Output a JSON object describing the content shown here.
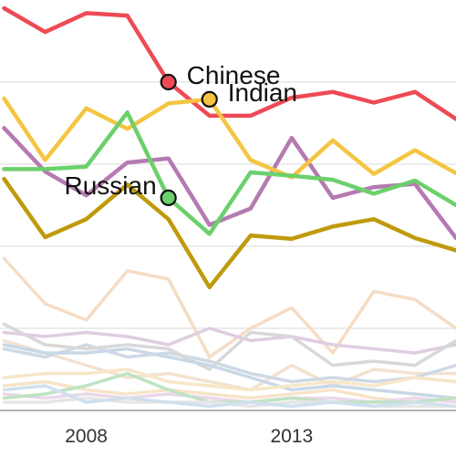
{
  "chart_data": {
    "type": "line",
    "title": "",
    "xlabel": "",
    "ylabel": "",
    "xlim": [
      2005.9,
      2017.0
    ],
    "ylim": [
      0,
      100
    ],
    "x_ticks": [
      2008,
      2013
    ],
    "x_tick_labels": [
      "2008",
      "2013"
    ],
    "grid": "horizontal",
    "legend": "none",
    "x": [
      2006,
      2007,
      2008,
      2009,
      2010,
      2011,
      2012,
      2013,
      2014,
      2015,
      2016,
      2017
    ],
    "highlighted": [
      {
        "name": "Chinese",
        "color": "#ee4a55",
        "label_year": 2010,
        "values": [
          98,
          92.2,
          96.8,
          96.2,
          80,
          71.8,
          71.8,
          76.2,
          77.6,
          75,
          77.6,
          71
        ]
      },
      {
        "name": "Indian",
        "color": "#f5c542",
        "label_year": 2011,
        "values": [
          76,
          61,
          73.6,
          68.6,
          74.8,
          75.8,
          61,
          56.8,
          65.8,
          57.6,
          63.4,
          57.8
        ]
      },
      {
        "name": "Russian",
        "color": "#6cd06c",
        "label_year": 2010,
        "values": [
          58.8,
          58.8,
          59.4,
          72.6,
          51.8,
          43,
          58,
          57.2,
          56.2,
          52.8,
          56,
          50
        ]
      },
      {
        "color": "#b57ab2",
        "values": [
          68.8,
          58.2,
          52.4,
          60.4,
          61.4,
          45.2,
          49.2,
          66.4,
          51.8,
          54.4,
          55.2,
          42
        ]
      },
      {
        "color": "#bf9a0c",
        "values": [
          56.4,
          42.2,
          46.6,
          55,
          46.6,
          30,
          42.6,
          41.8,
          44.8,
          46.6,
          42,
          39
        ]
      }
    ],
    "background_series": [
      {
        "color": "#f5dcc5",
        "values": [
          37,
          26,
          22,
          34,
          32,
          13,
          20,
          25,
          14,
          29,
          27,
          20
        ]
      },
      {
        "color": "#f3e2cf",
        "values": [
          17,
          14,
          11,
          8,
          9,
          7,
          5,
          11,
          6,
          10,
          9,
          9
        ]
      },
      {
        "color": "#e0cde0",
        "values": [
          19,
          18,
          19,
          18,
          16,
          20,
          17,
          18,
          16,
          15,
          14,
          16
        ]
      },
      {
        "color": "#cfd9e6",
        "values": [
          15,
          13,
          16,
          13,
          14,
          12,
          9,
          7,
          8,
          7,
          8,
          11
        ]
      },
      {
        "color": "#d8d8d8",
        "values": [
          21,
          16,
          15,
          16,
          15,
          10,
          19,
          18,
          11,
          12,
          11,
          17
        ]
      },
      {
        "color": "#c8d8e6",
        "values": [
          16,
          14,
          14,
          15,
          13,
          11,
          8,
          5,
          6,
          5,
          4,
          3
        ]
      },
      {
        "color": "#f7e4c8",
        "values": [
          6,
          7,
          5,
          4,
          5,
          4,
          3,
          4,
          5,
          3,
          2,
          3
        ]
      },
      {
        "color": "#ead8ea",
        "values": [
          4,
          3,
          4,
          3,
          4,
          3,
          2,
          3,
          3,
          2,
          3,
          2
        ]
      },
      {
        "color": "#bfe3c3",
        "values": [
          3,
          4,
          6,
          9,
          5,
          2,
          2,
          3,
          2,
          2,
          2,
          3
        ]
      },
      {
        "color": "#e6e6e6",
        "values": [
          2,
          2,
          3,
          2,
          2,
          2,
          1,
          2,
          2,
          1,
          1,
          1
        ]
      },
      {
        "color": "#cfe0ee",
        "values": [
          5,
          6,
          2,
          3,
          2,
          1,
          2,
          1,
          2,
          1,
          2,
          1
        ]
      },
      {
        "color": "#f6e7c7",
        "values": [
          8,
          9,
          9,
          10,
          7,
          6,
          5,
          6,
          7,
          6,
          8,
          7
        ]
      }
    ]
  }
}
